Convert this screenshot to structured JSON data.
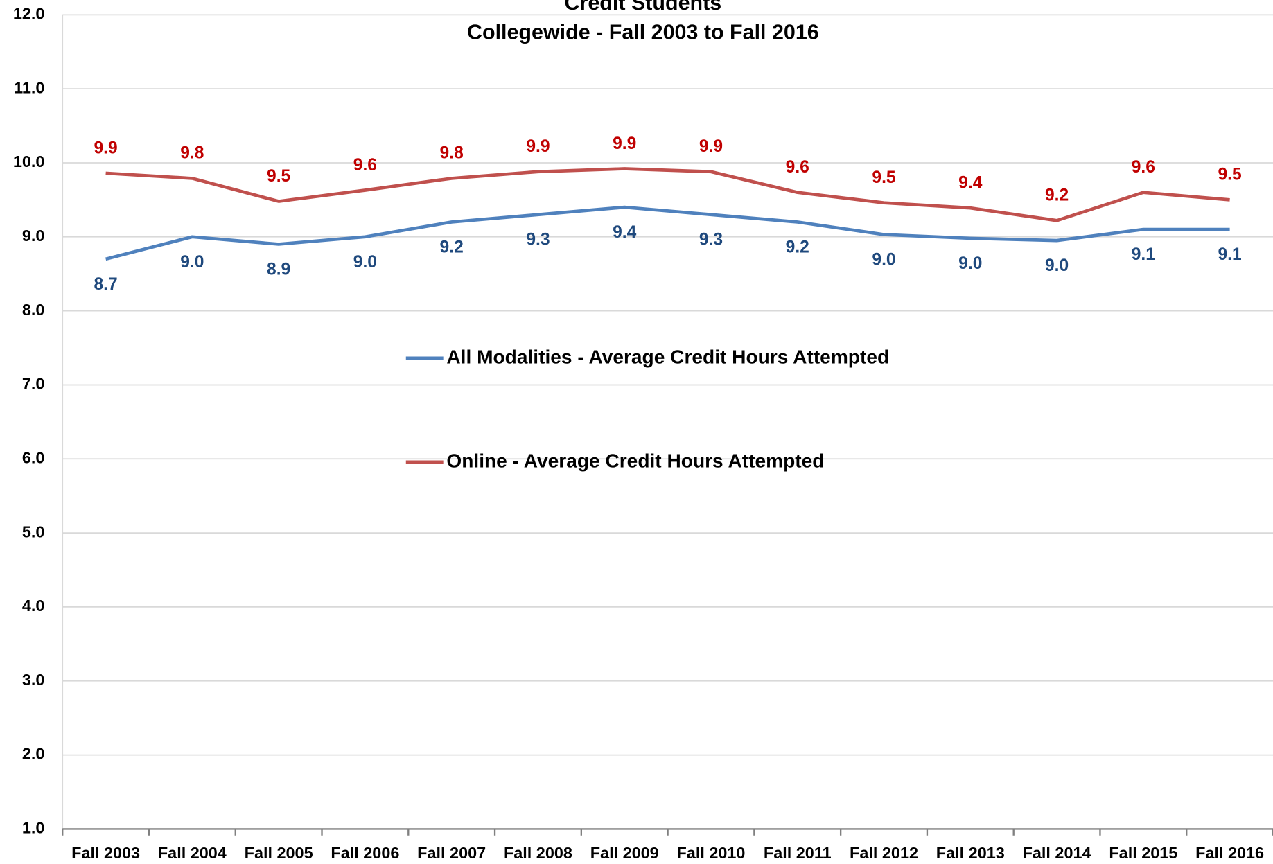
{
  "chart_data": {
    "type": "line",
    "title": "Credit Students",
    "subtitle": "Collegewide - Fall 2003 to Fall 2016",
    "categories": [
      "Fall 2003",
      "Fall 2004",
      "Fall 2005",
      "Fall 2006",
      "Fall 2007",
      "Fall 2008",
      "Fall 2009",
      "Fall 2010",
      "Fall 2011",
      "Fall 2012",
      "Fall 2013",
      "Fall 2014",
      "Fall 2015",
      "Fall 2016"
    ],
    "series": [
      {
        "name": "All Modalities - Average Credit Hours Attempted",
        "color": "#4f81bd",
        "label_color": "#1f497d",
        "values": [
          8.7,
          9.0,
          8.9,
          9.0,
          9.2,
          9.3,
          9.4,
          9.3,
          9.2,
          9.03,
          8.98,
          8.95,
          9.1,
          9.1
        ],
        "value_labels": [
          "8.7",
          "9.0",
          "8.9",
          "9.0",
          "9.2",
          "9.3",
          "9.4",
          "9.3",
          "9.2",
          "9.0",
          "9.0",
          "9.0",
          "9.1",
          "9.1"
        ]
      },
      {
        "name": "Online - Average Credit Hours Attempted",
        "color": "#c0504d",
        "label_color": "#c00000",
        "values": [
          9.86,
          9.79,
          9.48,
          9.63,
          9.79,
          9.88,
          9.92,
          9.88,
          9.6,
          9.46,
          9.39,
          9.22,
          9.6,
          9.5
        ],
        "value_labels": [
          "9.9",
          "9.8",
          "9.5",
          "9.6",
          "9.8",
          "9.9",
          "9.9",
          "9.9",
          "9.6",
          "9.5",
          "9.4",
          "9.2",
          "9.6",
          "9.5"
        ]
      }
    ],
    "ylim": [
      1,
      12
    ],
    "yticks": [
      {
        "value": 1,
        "label": "1.0"
      },
      {
        "value": 2,
        "label": "2.0"
      },
      {
        "value": 3,
        "label": "3.0"
      },
      {
        "value": 4,
        "label": "4.0"
      },
      {
        "value": 5,
        "label": "5.0"
      },
      {
        "value": 6,
        "label": "6.0"
      },
      {
        "value": 7,
        "label": "7.0"
      },
      {
        "value": 8,
        "label": "8.0"
      },
      {
        "value": 9,
        "label": "9.0"
      },
      {
        "value": 10,
        "label": "10.0"
      },
      {
        "value": 11,
        "label": "11.0"
      },
      {
        "value": 12,
        "label": "12.0"
      }
    ],
    "grid": true
  }
}
